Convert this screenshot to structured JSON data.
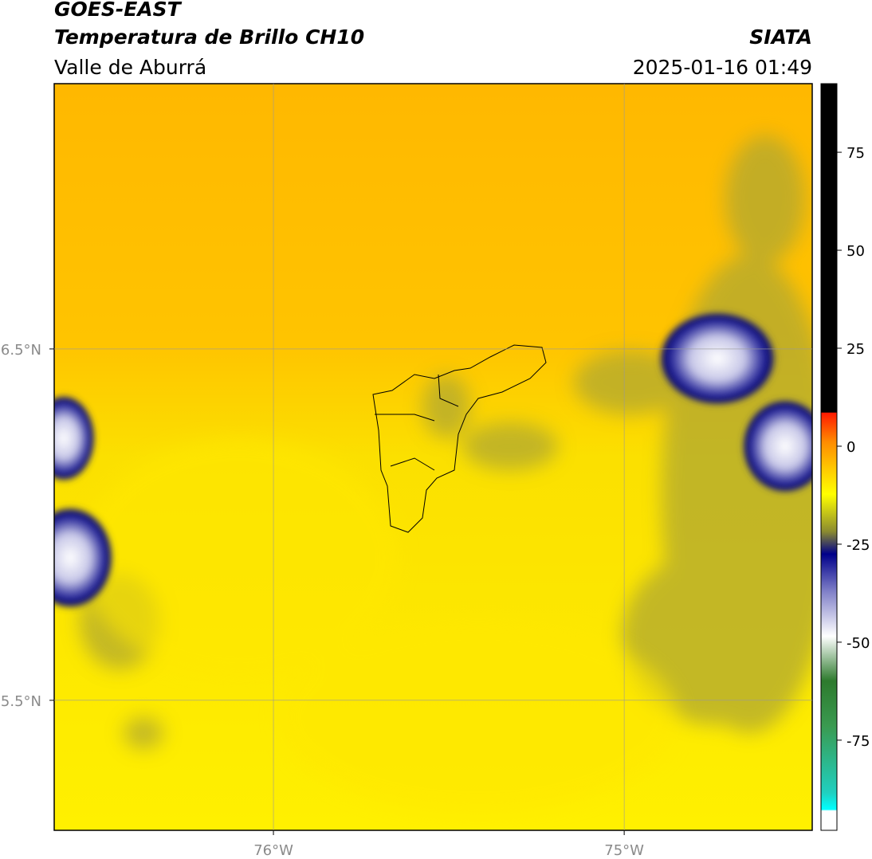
{
  "header": {
    "title": "GOES-EAST",
    "subtitle": "Temperatura de Brillo CH10",
    "region": "Valle de Aburrá",
    "source": "SIATA",
    "datetime": "2025-01-16 01:49"
  },
  "map": {
    "lonlim": [
      -76.625,
      -74.464
    ],
    "latlim": [
      5.13,
      7.255
    ],
    "lonticks": [
      {
        "value": -76,
        "label": "76°W"
      },
      {
        "value": -75,
        "label": "75°W"
      }
    ],
    "latticks": [
      {
        "value": 6.5,
        "label": "6.5°N"
      },
      {
        "value": 5.5,
        "label": "5.5°N"
      }
    ],
    "colorbar": {
      "lim": [
        -98,
        92.5
      ],
      "ticks": [
        75,
        50,
        25,
        0,
        -25,
        -50,
        -75
      ]
    }
  }
}
